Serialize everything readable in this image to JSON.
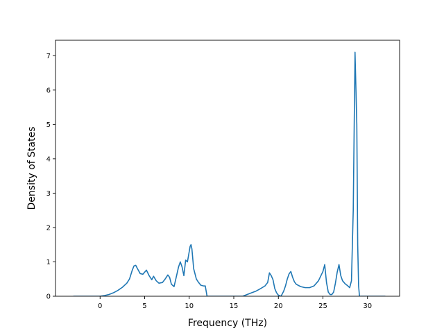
{
  "chart_data": {
    "type": "line",
    "title": "",
    "xlabel": "Frequency (THz)",
    "ylabel": "Density of States",
    "xlim": [
      -5.0,
      33.6
    ],
    "ylim": [
      0,
      7.45
    ],
    "xticks": [
      0,
      5,
      10,
      15,
      20,
      25,
      30
    ],
    "yticks": [
      0,
      1,
      2,
      3,
      4,
      5,
      6,
      7
    ],
    "grid": false,
    "line_color": "#1f77b4",
    "series": [
      {
        "x": [
          -3,
          -2,
          -1,
          -0.5,
          0,
          0.5,
          1,
          1.5,
          2,
          2.5,
          3,
          3.3,
          3.6,
          3.8,
          4.0,
          4.2,
          4.5,
          4.8,
          5.0,
          5.2,
          5.5,
          5.8,
          6.0,
          6.3,
          6.6,
          7.0,
          7.3,
          7.6,
          7.8,
          8.0,
          8.3,
          8.6,
          8.8,
          9.0,
          9.2,
          9.4,
          9.6,
          9.8,
          10.0,
          10.1,
          10.2,
          10.3,
          10.5,
          10.8,
          11.0,
          11.3,
          11.6,
          11.8,
          12.0,
          13,
          14,
          15,
          15.5,
          16,
          16.5,
          17,
          17.5,
          18,
          18.5,
          18.8,
          19.0,
          19.2,
          19.4,
          19.6,
          19.8,
          20.0,
          20.3,
          20.6,
          20.8,
          21.0,
          21.2,
          21.4,
          21.6,
          21.8,
          22.0,
          22.5,
          23,
          23.5,
          24,
          24.5,
          25.0,
          25.2,
          25.4,
          25.6,
          25.8,
          26.0,
          26.2,
          26.4,
          26.6,
          26.8,
          27.0,
          27.2,
          27.5,
          27.8,
          28.0,
          28.2,
          28.4,
          28.6,
          28.8,
          28.9,
          29.0,
          29.1,
          29.2,
          29.4,
          29.6,
          30,
          31,
          32
        ],
        "y": [
          0,
          0,
          0,
          0,
          0,
          0.02,
          0.05,
          0.1,
          0.17,
          0.26,
          0.38,
          0.5,
          0.75,
          0.88,
          0.9,
          0.8,
          0.66,
          0.64,
          0.7,
          0.76,
          0.6,
          0.48,
          0.58,
          0.45,
          0.38,
          0.4,
          0.5,
          0.62,
          0.55,
          0.35,
          0.28,
          0.62,
          0.85,
          1.0,
          0.85,
          0.6,
          1.05,
          1.0,
          1.3,
          1.45,
          1.5,
          1.38,
          0.8,
          0.5,
          0.42,
          0.32,
          0.3,
          0.3,
          0,
          0,
          0,
          0,
          0,
          0,
          0.05,
          0.1,
          0.15,
          0.22,
          0.3,
          0.4,
          0.68,
          0.6,
          0.48,
          0.22,
          0.1,
          0.03,
          0.0,
          0.15,
          0.3,
          0.5,
          0.65,
          0.72,
          0.55,
          0.42,
          0.35,
          0.28,
          0.25,
          0.25,
          0.3,
          0.45,
          0.72,
          0.92,
          0.4,
          0.12,
          0.05,
          0.05,
          0.12,
          0.38,
          0.7,
          0.92,
          0.6,
          0.45,
          0.36,
          0.3,
          0.25,
          0.45,
          2.5,
          7.1,
          5.0,
          1.5,
          0.3,
          0,
          0,
          0,
          0,
          0,
          0,
          0
        ]
      }
    ]
  }
}
